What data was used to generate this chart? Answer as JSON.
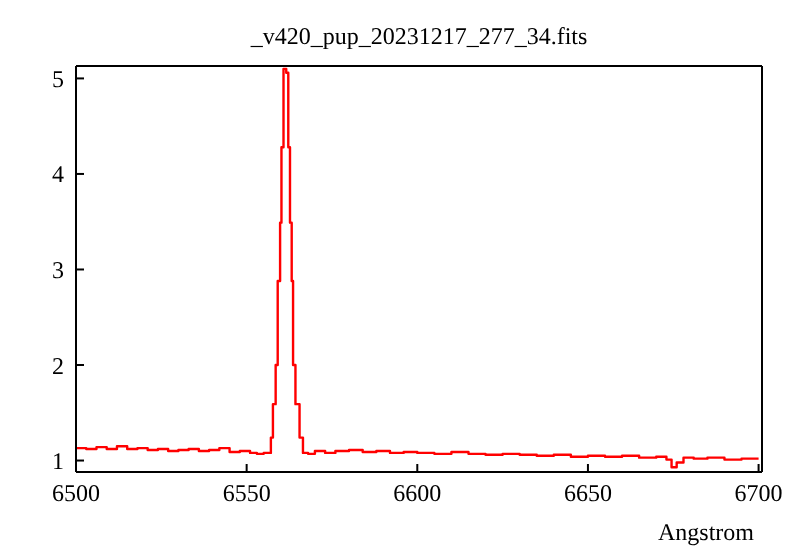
{
  "chart_data": {
    "type": "step",
    "title": "_v420_pup_20231217_277_34.fits",
    "xlabel": "Angstrom",
    "xlim": [
      6500,
      6701
    ],
    "ylim": [
      0.88,
      5.13
    ],
    "xticks": [
      6500,
      6550,
      6600,
      6650,
      6700
    ],
    "yticks": [
      1,
      2,
      3,
      4,
      5
    ],
    "series": [
      {
        "color": "#ff0000",
        "x": [
          6500,
          6503,
          6506,
          6509,
          6512,
          6515,
          6518,
          6521,
          6524,
          6527,
          6530,
          6533,
          6536,
          6539,
          6542,
          6545,
          6548,
          6551,
          6553,
          6555,
          6557.1,
          6557.7,
          6558.5,
          6559.1,
          6559.8,
          6560.2,
          6560.8,
          6561.6,
          6562.2,
          6562.7,
          6563.2,
          6563.6,
          6564.3,
          6565.5,
          6566.5,
          6568,
          6570,
          6573,
          6576,
          6580,
          6584,
          6588,
          6592,
          6596,
          6600,
          6605,
          6610,
          6615,
          6620,
          6625,
          6630,
          6635,
          6640,
          6645,
          6650,
          6655,
          6660,
          6665,
          6670,
          6673,
          6674.5,
          6676,
          6678,
          6681,
          6685,
          6690,
          6695,
          6700
        ],
        "values": [
          1.13,
          1.12,
          1.14,
          1.12,
          1.15,
          1.12,
          1.13,
          1.11,
          1.12,
          1.1,
          1.11,
          1.12,
          1.1,
          1.11,
          1.13,
          1.09,
          1.1,
          1.08,
          1.07,
          1.08,
          1.24,
          1.59,
          2.0,
          2.88,
          3.49,
          4.28,
          5.1,
          5.06,
          4.28,
          3.49,
          2.88,
          2.0,
          1.59,
          1.24,
          1.08,
          1.07,
          1.1,
          1.08,
          1.1,
          1.11,
          1.09,
          1.1,
          1.08,
          1.09,
          1.08,
          1.07,
          1.09,
          1.07,
          1.06,
          1.07,
          1.06,
          1.05,
          1.06,
          1.04,
          1.05,
          1.04,
          1.05,
          1.03,
          1.04,
          1.01,
          0.93,
          0.98,
          1.03,
          1.02,
          1.03,
          1.01,
          1.02,
          1.02
        ]
      }
    ]
  }
}
